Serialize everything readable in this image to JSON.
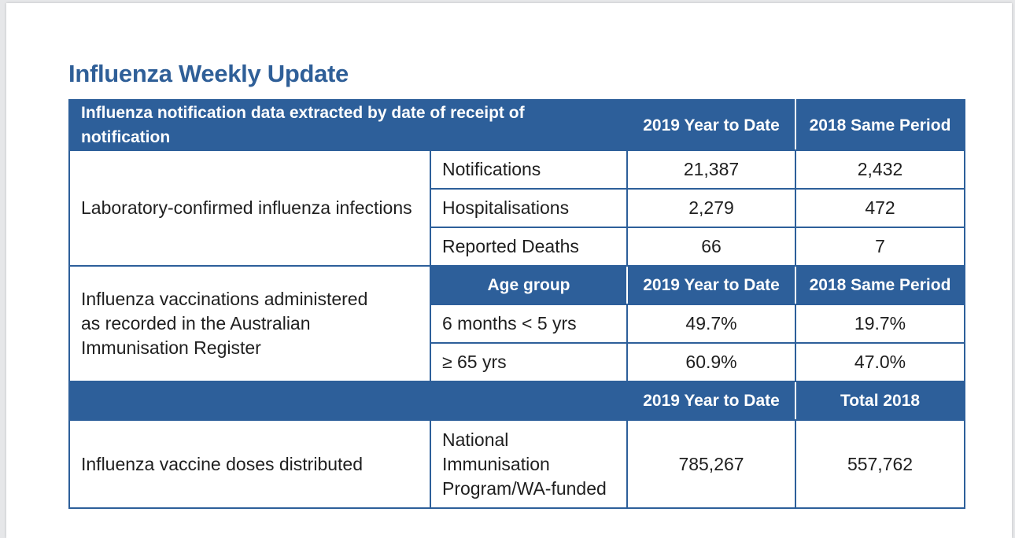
{
  "title": "Influenza Weekly Update",
  "colors": {
    "header_bg": "#2d5f9a",
    "title": "#2f5f98",
    "border": "#2d5f9a"
  },
  "header": {
    "description": "Influenza notification data extracted by date of receipt of notification",
    "col_2019": "2019 Year to Date",
    "col_2018": "2018 Same Period"
  },
  "lab_confirmed": {
    "label": "Laboratory-confirmed influenza infections",
    "rows": [
      {
        "measure": "Notifications",
        "y2019": "21,387",
        "y2018": "2,432"
      },
      {
        "measure": "Hospitalisations",
        "y2019": "2,279",
        "y2018": "472"
      },
      {
        "measure": "Reported Deaths",
        "y2019": "66",
        "y2018": "7"
      }
    ]
  },
  "vaccinations": {
    "label_line1": "Influenza vaccinations administered",
    "label_line2": "as recorded in the Australian",
    "label_line3": "Immunisation Register",
    "subheader": {
      "age_group": "Age group",
      "col_2019": "2019 Year to Date",
      "col_2018": "2018 Same Period"
    },
    "rows": [
      {
        "age": "6 months < 5 yrs",
        "y2019": "49.7%",
        "y2018": "19.7%"
      },
      {
        "age": "≥ 65 yrs",
        "y2019": "60.9%",
        "y2018": "47.0%"
      }
    ]
  },
  "doses": {
    "subheader": {
      "col_2019": "2019 Year to Date",
      "col_2018": "Total 2018"
    },
    "label": "Influenza vaccine doses distributed",
    "program_line1": "National",
    "program_line2": "Immunisation",
    "program_line3": "Program/WA-funded",
    "y2019": "785,267",
    "y2018": "557,762"
  }
}
